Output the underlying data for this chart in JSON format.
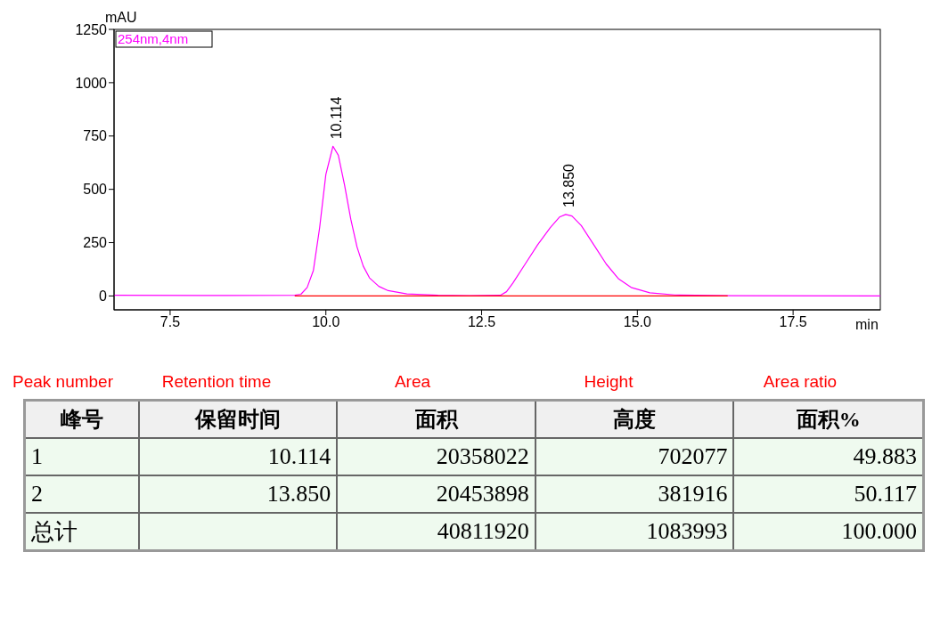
{
  "chart_data": [
    {
      "type": "line",
      "xlabel": "min",
      "ylabel": "mAU",
      "xlim": [
        6.6,
        18.9
      ],
      "ylim": [
        -65,
        1250
      ],
      "xticks": [
        7.5,
        {
          "value": 10,
          "label": "10.0"
        },
        12.5,
        {
          "value": 15,
          "label": "15.0"
        },
        17.5
      ],
      "yticks": [
        0,
        250,
        500,
        750,
        1000,
        1250
      ],
      "marker": "none",
      "line_style": "solid",
      "series": [
        {
          "color": "#ff00ff",
          "x": [
            6.6,
            8,
            9.5,
            9.6,
            9.7,
            9.8,
            9.9,
            10,
            10.114,
            10.2,
            10.3,
            10.4,
            10.5,
            10.6,
            10.7,
            10.85,
            11,
            11.3,
            11.8,
            12.3,
            12.8,
            12.9,
            13,
            13.2,
            13.4,
            13.6,
            13.75,
            13.85,
            13.95,
            14.1,
            14.3,
            14.5,
            14.7,
            14.9,
            15.2,
            15.6,
            16.5,
            18.9
          ],
          "values": [
            3,
            2,
            3,
            8,
            40,
            120,
            320,
            570,
            702,
            660,
            520,
            360,
            230,
            140,
            85,
            45,
            25,
            10,
            3,
            1,
            3,
            20,
            60,
            150,
            240,
            320,
            370,
            382,
            375,
            330,
            240,
            150,
            80,
            40,
            15,
            5,
            1,
            0
          ]
        },
        {
          "color": "#ff0000",
          "x": [
            9.5,
            12.28,
            12.62,
            16.45
          ],
          "values": [
            0,
            0,
            0,
            0
          ]
        }
      ],
      "annotations": [
        "254nm,4nm",
        {
          "text": "10.114",
          "x": 10.114,
          "y": 702
        },
        {
          "text": "13.850",
          "x": 13.85,
          "y": 382
        }
      ]
    },
    {
      "type": "other",
      "annotations": [
        "Peak number",
        "Retention time",
        "Area",
        "Height",
        "Area ratio",
        "峰号",
        "保留时间",
        "面积",
        "高度",
        "面积%",
        "1",
        "10.114",
        "20358022",
        "702077",
        "49.883",
        "2",
        "13.850",
        "20453898",
        "381916",
        "50.117",
        "总计",
        null,
        "40811920",
        "1083993",
        "100.000"
      ]
    }
  ]
}
